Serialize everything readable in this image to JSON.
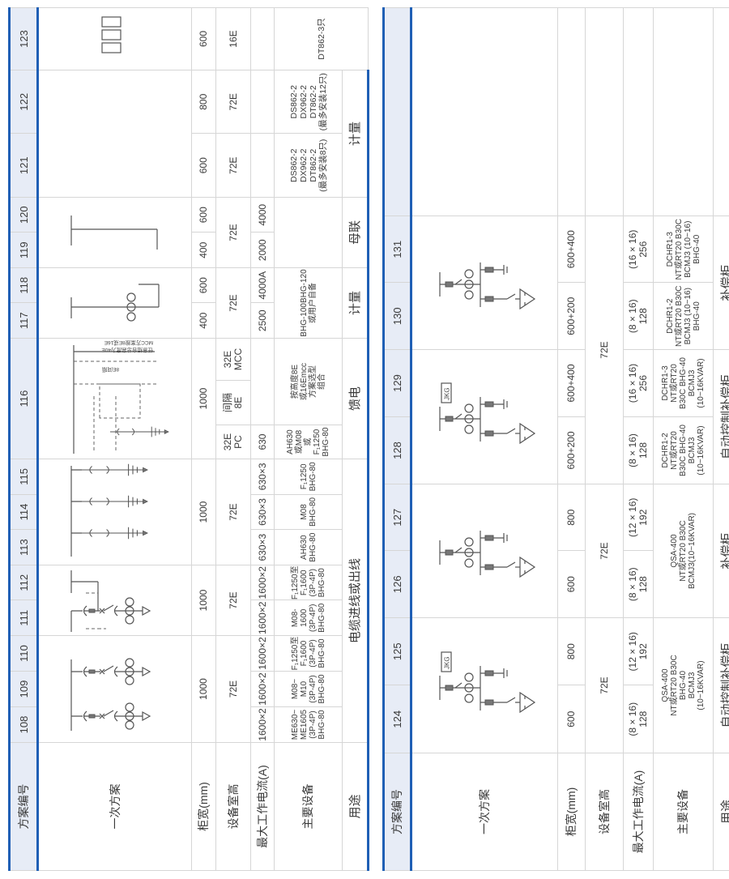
{
  "row_labels": {
    "scheme_no": "方案编号",
    "primary_scheme": "一次方案",
    "cabinet_width": "柜宽(mm)",
    "equipment_height": "设备室高",
    "max_current": "最大工作电流(A)",
    "main_equipment": "主要设备",
    "usage": "用途"
  },
  "colors": {
    "accent_blue": "#1f5fb5",
    "header_bg": "#e7ecf6",
    "grid": "#d6d6d6"
  },
  "left": {
    "numbers": [
      "108",
      "109",
      "110",
      "111",
      "112",
      "113",
      "114",
      "115",
      "116",
      "117",
      "118",
      "119",
      "120",
      "121",
      "122",
      "123"
    ],
    "diagram_116": {
      "mcc_note_1": "MCC方案按8E或16E",
      "mcc_note_2": "任意组合总高度为40E",
      "gap_note": "8E间隔"
    },
    "width": {
      "g108_110": "1000",
      "g111_112": "1000",
      "g113_115": "1000",
      "c116": "1000",
      "c117": "400",
      "c118": "600",
      "c119": "400",
      "c120": "600",
      "c121": "600",
      "c122": "800",
      "c123": "600"
    },
    "height": {
      "g108_110": "72E",
      "g111_112": "72E",
      "g113_115": "72E",
      "c116_pc": "32E\nPC",
      "c116_gap": "间隔\n8E",
      "c116_mcc": "32E\nMCC",
      "g117_118": "72E",
      "g119_120": "72E",
      "c121": "72E",
      "c122": "72E",
      "c123": "16E"
    },
    "current": {
      "c108": "1600×2",
      "c109": "1600×2",
      "c110": "1600×2",
      "c111": "1600×2",
      "c112": "1600×2",
      "c113": "630×3",
      "c114": "630×3",
      "c115": "630×3",
      "c116_pc": "630",
      "c117": "2500",
      "c118": "4000A",
      "c119": "2000",
      "c120": "4000"
    },
    "equipment": {
      "c108": "ME630~\nME1605\n(3P-4P)\nBHG-80",
      "c109": "M08~\nM10\n(3P-4P)\nBHG-80",
      "c110": "F₁1250至\nF₁1600\n(3P-4P)\nBHG-80",
      "c111": "M08-1600\n(3P-4P)\nBHG-80",
      "c112": "F₁1250至\nF₁1600\n(3P-4P)\nBHG-80",
      "c113": "AH630\nBHG-80",
      "c114": "M08\nBHG-80",
      "c115": "F₁1250\nBHG-80",
      "c116_pc": "AH630\n或M08\n或F₁1250\nBHG-80",
      "c116_mcc": "按高度8E\n或16Emcc\n方案选型\n组合",
      "g117_118": "BHG-100BHG-120\n或用户自备",
      "c121": "DS862-2\nDX962-2\nDT862-2\n(最多安装8只)",
      "c122": "DS862-2\nDX962-2\nDT862-2\n(最多安装12只)",
      "c123": "DT862-3只"
    },
    "usage": {
      "g108_115": "电缆进线或出线",
      "c116": "馈电",
      "g117_118": "计量",
      "g119_120": "母联",
      "g121_122": "计量"
    }
  },
  "right": {
    "numbers": [
      "124",
      "125",
      "126",
      "127",
      "128",
      "129",
      "130",
      "131"
    ],
    "jkg_label": "JKG",
    "width": [
      "600",
      "800",
      "600",
      "800",
      "600+200",
      "600+400",
      "600+200",
      "600+400"
    ],
    "height": {
      "g124_125": "72E",
      "g126_127": "72E",
      "g128_131": "72E"
    },
    "current": [
      "(8 × 16)\n128",
      "(12 × 16)\n192",
      "(8 × 16)\n128",
      "(12 × 16)\n192",
      "(8 × 16)\n128",
      "(16 × 16)\n256",
      "(8 × 16)\n128",
      "(16 × 16)\n256"
    ],
    "equipment": {
      "g124_125": "QSA-400\nNT或RT20  B30C\nBHG-40\nBCMJ3\n(10~16KVAR)",
      "g126_127": "QSA-400\nNT或RT20  B30C\nBCMJ3(10~16KVAR)",
      "c128": "DCHR1-2\nNT或RT20\nB30C  BHG-40\nBCMJ3\n(10~16KVAR)",
      "c129": "DCHR1-3\nNT或RT20\nB30C  BHG-40\nBCMJ3\n(10~16KVAR)",
      "c130": "DCHR1-2\nNT或RT20  B30C\nBCMJ3  (10~16)\nBHG-40",
      "c131": "DCHR1-3\nNT或RT20  B30C\nBCMJ3  (10~16)\nBHG-40"
    },
    "usage": {
      "g124_125": "自动控制补偿柜",
      "g126_127": "补偿柜",
      "g128_129": "自动控制补偿柜",
      "g130_131": "补偿柜"
    }
  }
}
